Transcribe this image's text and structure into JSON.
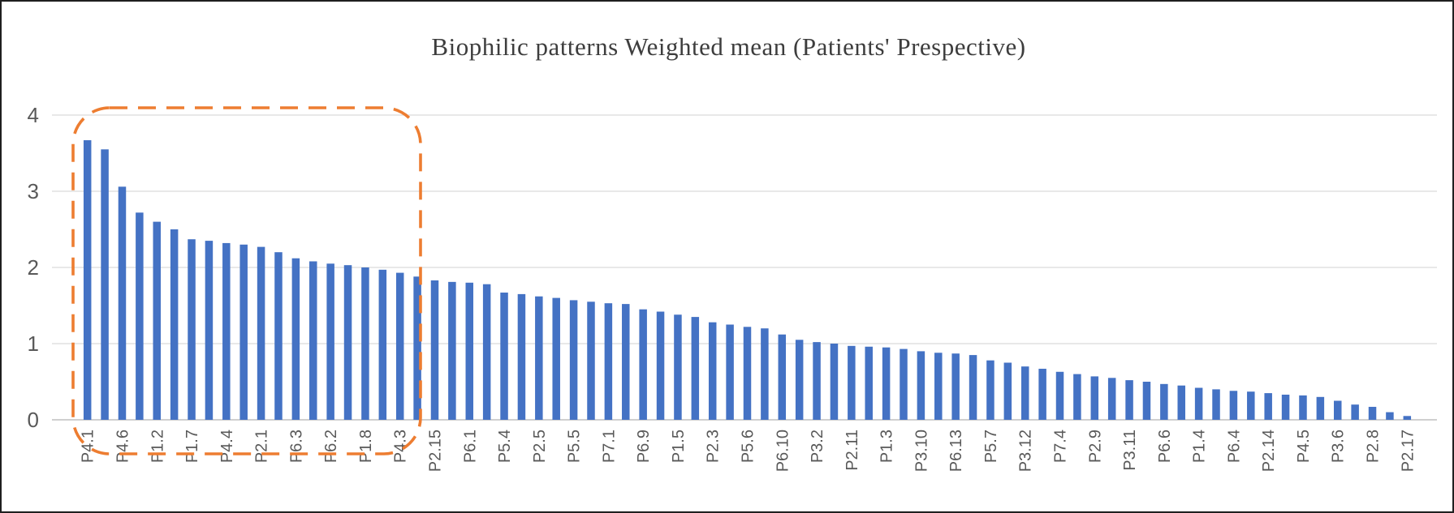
{
  "figure": {
    "title": "Biophilic patterns Weighted mean (Patients' Prespective)"
  },
  "chart_data": {
    "type": "bar",
    "title": "Biophilic patterns Weighted mean (Patients' Prespective)",
    "xlabel": "",
    "ylabel": "",
    "ylim": [
      0,
      4
    ],
    "yticks": [
      0,
      1,
      2,
      3,
      4
    ],
    "grid": "horizontal",
    "legend": "none",
    "bar_color": "#4472C4",
    "axis_text_color": "#595959",
    "gridline_color": "#d9d9d9",
    "categories": [
      "P4.1",
      "",
      "P4.6",
      "",
      "P1.2",
      "",
      "P1.7",
      "",
      "P4.4",
      "",
      "P2.1",
      "",
      "P6.3",
      "",
      "P6.2",
      "",
      "P1.8",
      "",
      "P4.3",
      "",
      "P2.15",
      "",
      "P6.1",
      "",
      "P5.4",
      "",
      "P2.5",
      "",
      "P5.5",
      "",
      "P7.1",
      "",
      "P6.9",
      "",
      "P1.5",
      "",
      "P2.3",
      "",
      "P5.6",
      "",
      "P6.10",
      "",
      "P3.2",
      "",
      "P2.11",
      "",
      "P1.3",
      "",
      "P3.10",
      "",
      "P6.13",
      "",
      "P5.7",
      "",
      "P3.12",
      "",
      "P7.4",
      "",
      "P2.9",
      "",
      "P3.11",
      "",
      "P6.6",
      "",
      "P1.4",
      "",
      "P6.4",
      "",
      "P2.14",
      "",
      "P4.5",
      "",
      "P3.6",
      "",
      "P2.8",
      "",
      "P2.17"
    ],
    "values": [
      3.67,
      3.55,
      3.06,
      2.72,
      2.6,
      2.5,
      2.37,
      2.35,
      2.32,
      2.3,
      2.27,
      2.2,
      2.12,
      2.08,
      2.05,
      2.03,
      2.0,
      1.97,
      1.93,
      1.88,
      1.83,
      1.81,
      1.8,
      1.78,
      1.67,
      1.65,
      1.62,
      1.6,
      1.57,
      1.55,
      1.53,
      1.52,
      1.45,
      1.42,
      1.38,
      1.35,
      1.28,
      1.25,
      1.22,
      1.2,
      1.12,
      1.05,
      1.02,
      1.0,
      0.97,
      0.96,
      0.95,
      0.93,
      0.9,
      0.88,
      0.87,
      0.85,
      0.78,
      0.75,
      0.7,
      0.67,
      0.63,
      0.6,
      0.57,
      0.55,
      0.52,
      0.5,
      0.47,
      0.45,
      0.42,
      0.4,
      0.38,
      0.37,
      0.35,
      0.33,
      0.32,
      0.3,
      0.25,
      0.2,
      0.17,
      0.1,
      0.05
    ],
    "highlight_box": {
      "style": "dashed-rounded-rectangle",
      "color": "#ED7D31",
      "covers_bars_from": "P4.1",
      "covers_bars_to": "P4.3"
    }
  }
}
